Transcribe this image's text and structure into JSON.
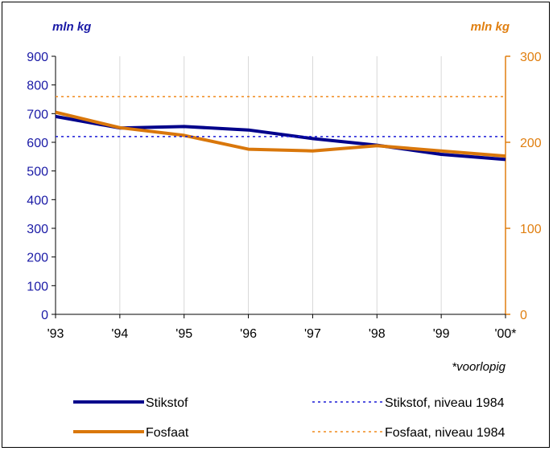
{
  "chart_data": {
    "type": "line",
    "title": "",
    "x": [
      "'93",
      "'94",
      "'95",
      "'96",
      "'97",
      "'98",
      "'99",
      "'00*"
    ],
    "left_axis": {
      "unit": "mln kg",
      "ylim": [
        0,
        900
      ],
      "ticks": [
        "0",
        "100",
        "200",
        "300",
        "400",
        "500",
        "600",
        "700",
        "800",
        "900"
      ],
      "color": "#1a1aa6"
    },
    "right_axis": {
      "unit": "mln kg",
      "ylim": [
        0,
        300
      ],
      "ticks": [
        "0",
        "100",
        "200",
        "300"
      ],
      "color": "#e07f10"
    },
    "series": [
      {
        "name": "Stikstof",
        "axis": "left",
        "color": "#00008b",
        "style": "solid",
        "values": [
          690,
          650,
          655,
          643,
          613,
          590,
          558,
          540
        ]
      },
      {
        "name": "Fosfaat",
        "axis": "right",
        "color": "#d9770b",
        "style": "solid",
        "values": [
          235,
          217,
          208,
          192,
          190,
          196,
          190,
          184
        ]
      },
      {
        "name": "Stikstof, niveau 1984",
        "axis": "left",
        "color": "#1a1ad6",
        "style": "dotted",
        "values": [
          620,
          620,
          620,
          620,
          620,
          620,
          620,
          620
        ]
      },
      {
        "name": "Fosfaat, niveau 1984",
        "axis": "right",
        "color": "#f08a1c",
        "style": "dotted",
        "values": [
          253,
          253,
          253,
          253,
          253,
          253,
          253,
          253
        ]
      }
    ],
    "footnote": "*voorlopig",
    "grid": true,
    "legend_position": "bottom"
  }
}
